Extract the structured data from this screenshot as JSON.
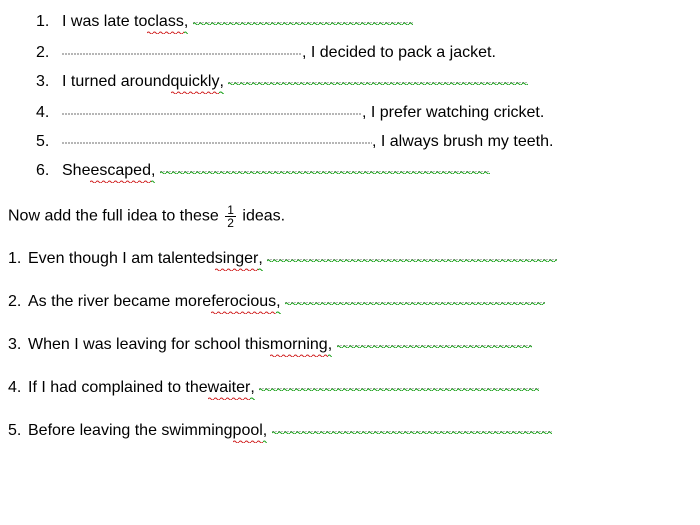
{
  "list_top": [
    {
      "num": "1.",
      "pre": "I was late to ",
      "red": "class",
      "grn_after_red": ",",
      "blank_w": 220,
      "post": ""
    },
    {
      "num": "2.",
      "pre": "",
      "red": "",
      "grn_after_red": "",
      "blank_w": 240,
      "post": ", I decided to pack a jacket."
    },
    {
      "num": "3.",
      "pre": "I turned around ",
      "red": "quickly",
      "grn_after_red": ",",
      "blank_w": 300,
      "post": ""
    },
    {
      "num": "4.",
      "pre": "",
      "red": "",
      "grn_after_red": "",
      "blank_w": 300,
      "post": ", I prefer watching cricket."
    },
    {
      "num": "5.",
      "pre": "",
      "red": "",
      "grn_after_red": "",
      "blank_w": 310,
      "post": ", I always brush my teeth."
    },
    {
      "num": "6.",
      "pre": "She ",
      "red": "escaped",
      "grn_after_red": ",",
      "blank_w": 330,
      "post": ""
    }
  ],
  "instruction_pre": "Now add the full idea to these ",
  "frac_num": "1",
  "frac_den": "2",
  "instruction_post": " ideas.",
  "list_bottom": [
    {
      "num": "1.",
      "pre": "Even though I am talented ",
      "red": "singer",
      "grn_after_red": ",",
      "blank_w": 290
    },
    {
      "num": "2.",
      "pre": "As the river became more ",
      "red": "ferocious",
      "grn_after_red": ",",
      "blank_w": 260
    },
    {
      "num": "3.",
      "pre": "When I was leaving for school this ",
      "red": "morning",
      "grn_after_red": ",",
      "blank_w": 195
    },
    {
      "num": "4.",
      "pre": "If I had complained to the ",
      "red": "waiter",
      "grn_after_red": ",",
      "blank_w": 280
    },
    {
      "num": "5.",
      "pre": "Before leaving the swimming ",
      "red": "pool",
      "grn_after_red": ",",
      "blank_w": 280
    }
  ],
  "colors": {
    "text": "#000000",
    "bg": "#ffffff",
    "squiggle_red": "#d02020",
    "squiggle_green": "#18a018"
  },
  "typography": {
    "font_family": "Comic Sans MS",
    "font_size_pt": 12
  }
}
